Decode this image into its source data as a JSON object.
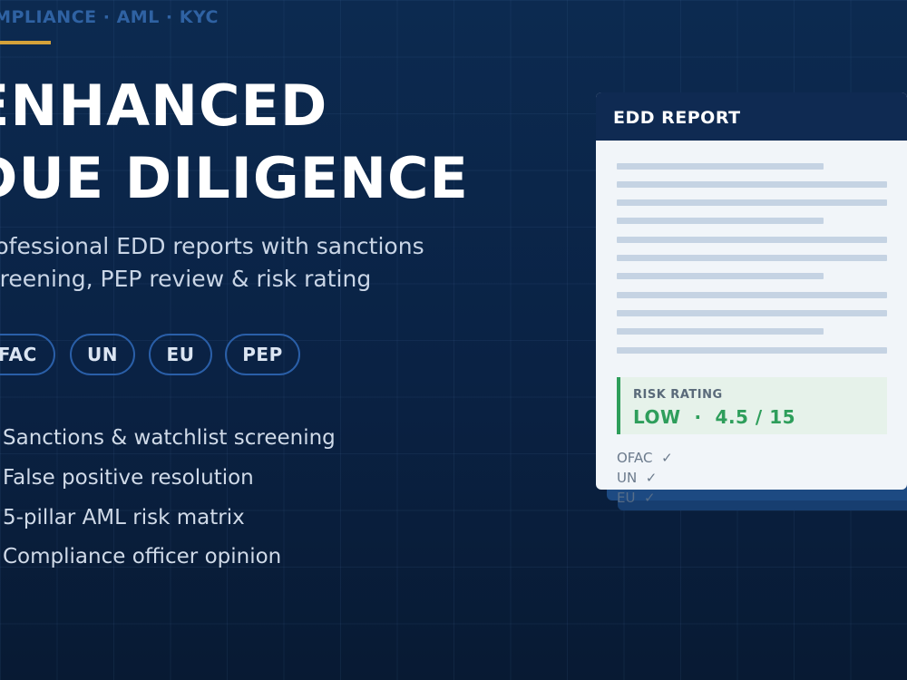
{
  "tagline": "COMPLIANCE · AML · KYC",
  "title": [
    "ENHANCED",
    "DUE DILIGENCE"
  ],
  "subtitle": [
    "Professional EDD reports with sanctions",
    "Screening, PEP review & risk rating"
  ],
  "badges": [
    "OFAC",
    "UN",
    "EU",
    "PEP"
  ],
  "features": [
    "Sanctions & watchlist screening",
    "False positive resolution",
    "5-pillar AML risk matrix",
    "Compliance officer opinion"
  ],
  "card": {
    "title": "EDD REPORT",
    "risk_label": "RISK RATING",
    "risk_value": "LOW  ·  4.5 / 15",
    "checks": [
      "OFAC  ✓",
      "UN  ✓",
      "EU  ✓"
    ]
  }
}
